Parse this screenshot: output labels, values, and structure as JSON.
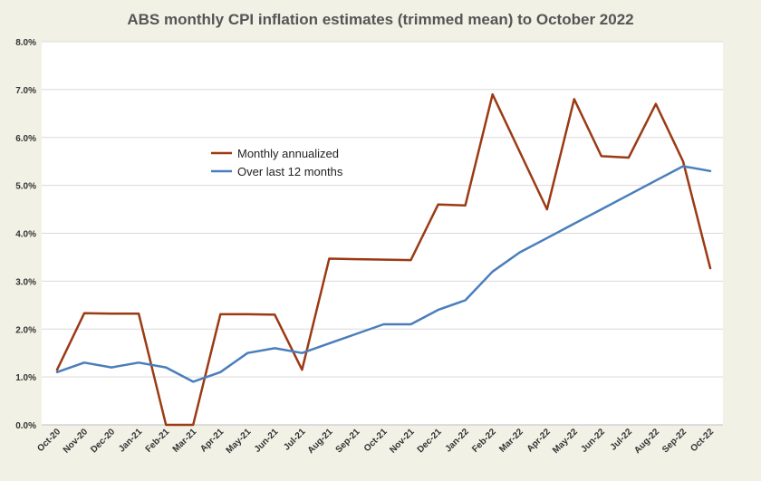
{
  "chart_data": {
    "type": "line",
    "title": "ABS monthly CPI inflation estimates (trimmed mean) to October 2022",
    "xlabel": "",
    "ylabel": "",
    "ylim": [
      0,
      8
    ],
    "y_tick_values": [
      0,
      1,
      2,
      3,
      4,
      5,
      6,
      7,
      8
    ],
    "y_tick_labels": [
      "0.0%",
      "1.0%",
      "2.0%",
      "3.0%",
      "4.0%",
      "5.0%",
      "6.0%",
      "7.0%",
      "8.0%"
    ],
    "grid": true,
    "legend_position": "center-left",
    "categories": [
      "Oct-20",
      "Nov-20",
      "Dec-20",
      "Jan-21",
      "Feb-21",
      "Mar-21",
      "Apr-21",
      "May-21",
      "Jun-21",
      "Jul-21",
      "Aug-21",
      "Sep-21",
      "Oct-21",
      "Nov-21",
      "Dec-21",
      "Jan-22",
      "Feb-22",
      "Mar-22",
      "Apr-22",
      "May-22",
      "Jun-22",
      "Jul-22",
      "Aug-22",
      "Sep-22",
      "Oct-22"
    ],
    "series": [
      {
        "name": "Monthly annualized",
        "color": "#9b3a14",
        "values": [
          1.15,
          2.33,
          2.32,
          2.32,
          0.0,
          0.0,
          2.31,
          2.31,
          2.3,
          1.15,
          3.47,
          3.46,
          3.45,
          3.44,
          4.6,
          4.58,
          6.9,
          5.7,
          4.5,
          6.8,
          5.61,
          5.58,
          6.7,
          5.5,
          3.27
        ]
      },
      {
        "name": "Over last 12 months",
        "color": "#4a7ebb",
        "values": [
          1.1,
          1.3,
          1.2,
          1.3,
          1.2,
          0.9,
          1.1,
          1.5,
          1.6,
          1.5,
          1.7,
          1.9,
          2.1,
          2.1,
          2.4,
          2.6,
          3.2,
          3.6,
          3.9,
          4.2,
          4.5,
          4.8,
          5.1,
          5.4,
          5.3
        ]
      }
    ]
  }
}
